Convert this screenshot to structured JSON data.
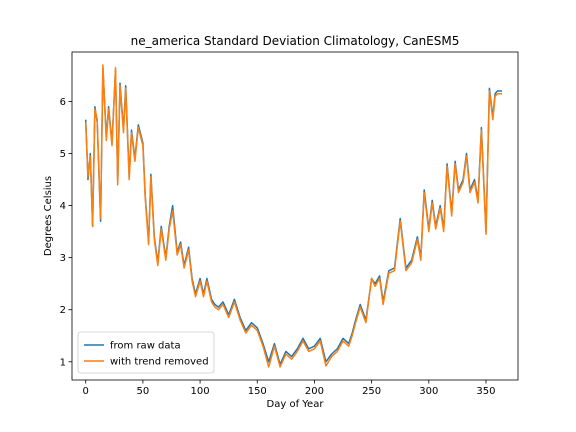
{
  "chart_data": {
    "type": "line",
    "title": "ne_america Standard Deviation Climatology, CanESM5",
    "xlabel": "Day of Year",
    "ylabel": "Degrees Celsius",
    "xlim": [
      -12,
      378
    ],
    "ylim": [
      0.65,
      6.95
    ],
    "xticks": [
      0,
      50,
      100,
      150,
      200,
      250,
      300,
      350
    ],
    "yticks": [
      1,
      2,
      3,
      4,
      5,
      6
    ],
    "grid": false,
    "legend_position": "lower-left",
    "colors": {
      "raw": "#1f77b4",
      "detrended": "#ff7f0e"
    },
    "series": [
      {
        "name": "from raw data",
        "x": [
          0,
          2,
          4,
          6,
          8,
          10,
          13,
          15,
          18,
          20,
          23,
          26,
          28,
          30,
          33,
          35,
          38,
          40,
          43,
          46,
          50,
          52,
          55,
          57,
          60,
          63,
          66,
          70,
          73,
          76,
          80,
          83,
          86,
          90,
          93,
          96,
          100,
          103,
          106,
          110,
          113,
          116,
          120,
          125,
          130,
          135,
          140,
          145,
          150,
          155,
          160,
          165,
          170,
          175,
          180,
          185,
          190,
          195,
          200,
          205,
          210,
          215,
          220,
          225,
          230,
          233,
          236,
          240,
          245,
          250,
          253,
          257,
          260,
          265,
          270,
          275,
          280,
          285,
          290,
          293,
          296,
          300,
          303,
          306,
          310,
          313,
          316,
          320,
          323,
          326,
          330,
          333,
          336,
          340,
          343,
          346,
          350,
          353,
          356,
          358,
          360,
          362,
          364
        ],
        "values": [
          5.65,
          4.5,
          5.0,
          3.6,
          5.9,
          5.6,
          3.7,
          6.65,
          5.3,
          5.9,
          5.2,
          6.6,
          4.45,
          6.35,
          5.45,
          6.3,
          4.55,
          5.45,
          4.9,
          5.55,
          5.2,
          4.2,
          3.3,
          4.6,
          3.4,
          2.9,
          3.6,
          3.0,
          3.6,
          4.0,
          3.1,
          3.3,
          2.85,
          3.2,
          2.6,
          2.3,
          2.6,
          2.3,
          2.6,
          2.2,
          2.1,
          2.05,
          2.15,
          1.9,
          2.2,
          1.85,
          1.6,
          1.75,
          1.65,
          1.35,
          1.0,
          1.35,
          0.95,
          1.2,
          1.1,
          1.25,
          1.45,
          1.25,
          1.3,
          1.45,
          1.0,
          1.15,
          1.25,
          1.45,
          1.35,
          1.55,
          1.8,
          2.1,
          1.8,
          2.6,
          2.5,
          2.65,
          2.15,
          2.75,
          2.8,
          3.75,
          2.8,
          2.95,
          3.4,
          3.0,
          4.3,
          3.55,
          4.1,
          3.6,
          4.0,
          3.55,
          4.8,
          3.85,
          4.85,
          4.3,
          4.5,
          5.0,
          4.3,
          4.5,
          4.1,
          5.5,
          3.5,
          6.25,
          5.7,
          6.15,
          6.2,
          6.2,
          6.2
        ]
      },
      {
        "name": "with trend removed",
        "x": [
          0,
          2,
          4,
          6,
          8,
          10,
          13,
          15,
          18,
          20,
          23,
          26,
          28,
          30,
          33,
          35,
          38,
          40,
          43,
          46,
          50,
          52,
          55,
          57,
          60,
          63,
          66,
          70,
          73,
          76,
          80,
          83,
          86,
          90,
          93,
          96,
          100,
          103,
          106,
          110,
          113,
          116,
          120,
          125,
          130,
          135,
          140,
          145,
          150,
          155,
          160,
          165,
          170,
          175,
          180,
          185,
          190,
          195,
          200,
          205,
          210,
          215,
          220,
          225,
          230,
          233,
          236,
          240,
          245,
          250,
          253,
          257,
          260,
          265,
          270,
          275,
          280,
          285,
          290,
          293,
          296,
          300,
          303,
          306,
          310,
          313,
          316,
          320,
          323,
          326,
          330,
          333,
          336,
          340,
          343,
          346,
          350,
          353,
          356,
          358,
          360,
          362,
          364
        ],
        "values": [
          5.6,
          4.55,
          4.95,
          3.6,
          5.85,
          5.65,
          3.75,
          6.7,
          5.25,
          5.85,
          5.15,
          6.65,
          4.4,
          6.3,
          5.4,
          6.25,
          4.5,
          5.4,
          4.85,
          5.5,
          5.15,
          4.15,
          3.25,
          4.55,
          3.35,
          2.85,
          3.55,
          2.95,
          3.55,
          3.9,
          3.05,
          3.25,
          2.8,
          3.15,
          2.55,
          2.25,
          2.55,
          2.25,
          2.55,
          2.15,
          2.05,
          2.0,
          2.1,
          1.85,
          2.15,
          1.8,
          1.55,
          1.7,
          1.6,
          1.3,
          0.9,
          1.3,
          0.9,
          1.15,
          1.05,
          1.2,
          1.4,
          1.2,
          1.25,
          1.4,
          0.92,
          1.1,
          1.2,
          1.4,
          1.3,
          1.5,
          1.75,
          2.05,
          1.75,
          2.6,
          2.45,
          2.6,
          2.1,
          2.7,
          2.75,
          3.7,
          2.75,
          2.9,
          3.35,
          2.95,
          4.25,
          3.5,
          4.05,
          3.55,
          3.95,
          3.5,
          4.75,
          3.8,
          4.8,
          4.25,
          4.45,
          4.95,
          4.25,
          4.45,
          4.05,
          5.45,
          3.45,
          6.2,
          5.65,
          6.1,
          6.15,
          6.15,
          6.15
        ]
      }
    ]
  }
}
